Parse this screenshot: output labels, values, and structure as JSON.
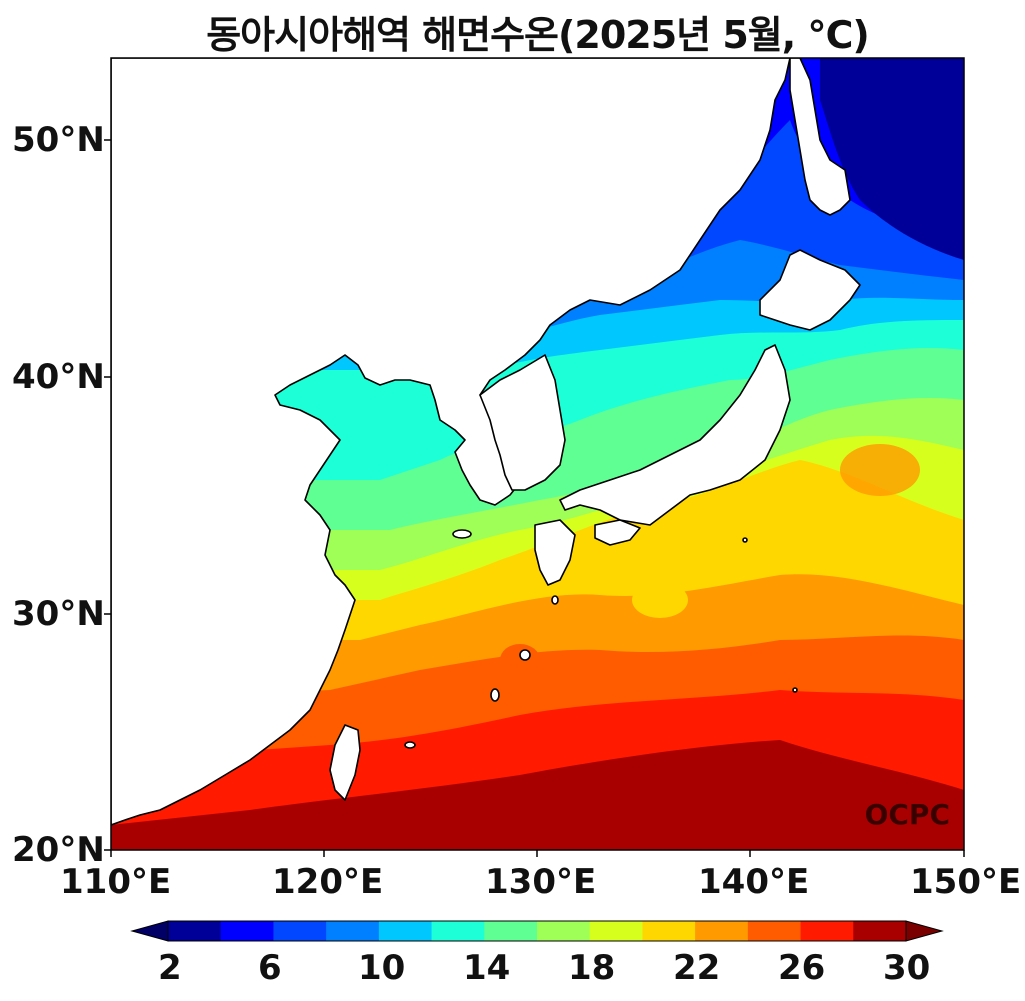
{
  "title": "동아시아해역 해면수온(2025년 5월, ℃)",
  "watermark": "OCPC",
  "lat_ticks": [
    "50°N",
    "40°N",
    "30°N",
    "20°N"
  ],
  "lon_ticks": [
    "110°E",
    "120°E",
    "130°E",
    "140°E",
    "150°E"
  ],
  "colorbar": {
    "ticks": [
      "2",
      "6",
      "10",
      "14",
      "18",
      "22",
      "26",
      "30"
    ],
    "colors": [
      "#000099",
      "#0000ff",
      "#0047ff",
      "#007fff",
      "#00c8ff",
      "#1dffd7",
      "#60ff93",
      "#9fff56",
      "#d7ff1d",
      "#ffd700",
      "#ff9a00",
      "#ff5c00",
      "#ff1a00",
      "#a80000"
    ],
    "under_color": "#000066",
    "over_color": "#7a0000"
  }
}
